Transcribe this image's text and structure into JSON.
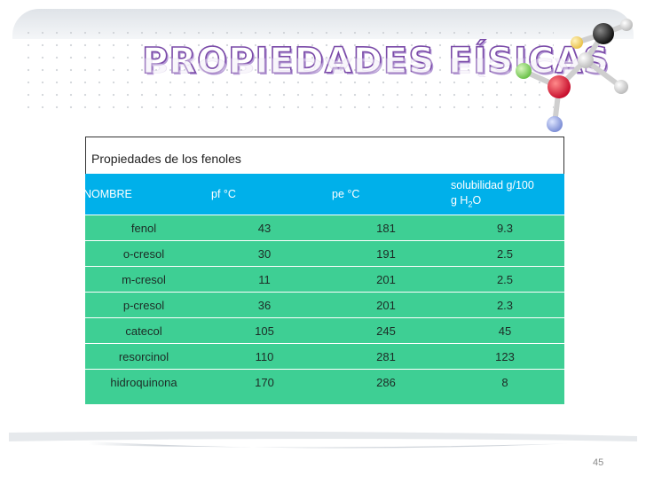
{
  "slide": {
    "title": "PROPIEDADES FÍSICAS",
    "page_number": "45"
  },
  "table": {
    "caption": "Propiedades de los fenoles",
    "headers": {
      "nombre": "NOMBRE",
      "pf": "pf °C",
      "pe": "pe °C",
      "sol_main": "solubilidad g/100",
      "sol_unit_pre": "g H",
      "sol_unit_sub": "2",
      "sol_unit_post": "O"
    },
    "rows": [
      {
        "nombre": "fenol",
        "pf": "43",
        "pe": "181",
        "sol": "9.3"
      },
      {
        "nombre": "o-cresol",
        "pf": "30",
        "pe": "191",
        "sol": "2.5"
      },
      {
        "nombre": "m-cresol",
        "pf": "11",
        "pe": "201",
        "sol": "2.5"
      },
      {
        "nombre": "p-cresol",
        "pf": "36",
        "pe": "201",
        "sol": "2.3"
      },
      {
        "nombre": "catecol",
        "pf": "105",
        "pe": "245",
        "sol": "45"
      },
      {
        "nombre": "resorcinol",
        "pf": "110",
        "pe": "281",
        "sol": "123"
      },
      {
        "nombre": "hidroquinona",
        "pf": "170",
        "pe": "286",
        "sol": "8"
      }
    ]
  },
  "colors": {
    "header_bg": "#00b0ea",
    "body_bg": "#3ecf94",
    "title_outline": "#7a4aa8"
  },
  "icons": {
    "molecule": "molecule-model-icon"
  }
}
